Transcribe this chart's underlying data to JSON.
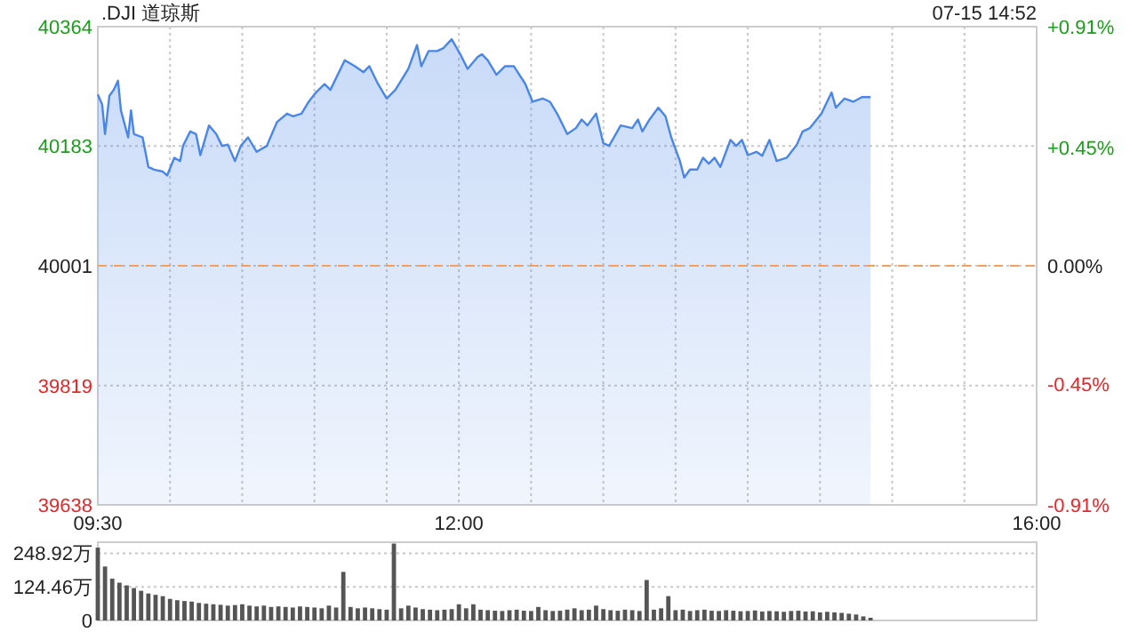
{
  "chart_data": [
    {
      "type": "area",
      "title": ".DJI 道琼斯",
      "annotations": [
        "07-15 14:52"
      ],
      "color": "#4a86e8",
      "x": [
        9.5,
        9.53,
        9.55,
        9.58,
        9.61,
        9.64,
        9.66,
        9.71,
        9.73,
        9.75,
        9.81,
        9.85,
        9.89,
        9.95,
        9.98,
        10.03,
        10.07,
        10.09,
        10.14,
        10.18,
        10.21,
        10.27,
        10.32,
        10.36,
        10.4,
        10.45,
        10.49,
        10.54,
        10.6,
        10.67,
        10.74,
        10.81,
        10.85,
        10.91,
        10.96,
        11.01,
        11.07,
        11.11,
        11.21,
        11.28,
        11.34,
        11.38,
        11.44,
        11.5,
        11.56,
        11.65,
        11.71,
        11.74,
        11.79,
        11.85,
        11.89,
        11.95,
        12.01,
        12.06,
        12.13,
        12.16,
        12.2,
        12.26,
        12.32,
        12.38,
        12.46,
        12.51,
        12.58,
        12.63,
        12.68,
        12.75,
        12.81,
        12.85,
        12.89,
        12.95,
        13.0,
        13.04,
        13.12,
        13.2,
        13.24,
        13.27,
        13.32,
        13.38,
        13.43,
        13.47,
        13.53,
        13.56,
        13.6,
        13.65,
        13.69,
        13.73,
        13.77,
        13.81,
        13.88,
        13.92,
        13.96,
        14.0,
        14.06,
        14.1,
        14.15,
        14.2,
        14.27,
        14.34,
        14.38,
        14.43,
        14.51,
        14.58,
        14.61,
        14.67,
        14.73,
        14.79,
        14.85
      ],
      "values": [
        40261,
        40246,
        40201,
        40259,
        40268,
        40282,
        40237,
        40196,
        40237,
        40201,
        40196,
        40151,
        40147,
        40144,
        40138,
        40165,
        40160,
        40183,
        40205,
        40201,
        40169,
        40214,
        40201,
        40183,
        40185,
        40160,
        40183,
        40196,
        40174,
        40183,
        40219,
        40232,
        40228,
        40232,
        40250,
        40264,
        40277,
        40268,
        40313,
        40304,
        40295,
        40304,
        40277,
        40255,
        40268,
        40300,
        40336,
        40304,
        40327,
        40327,
        40331,
        40345,
        40322,
        40300,
        40318,
        40322,
        40313,
        40291,
        40304,
        40304,
        40277,
        40250,
        40255,
        40250,
        40232,
        40201,
        40210,
        40223,
        40214,
        40232,
        40187,
        40183,
        40214,
        40210,
        40223,
        40205,
        40223,
        40241,
        40228,
        40196,
        40160,
        40135,
        40147,
        40147,
        40165,
        40156,
        40165,
        40151,
        40192,
        40183,
        40192,
        40169,
        40174,
        40168,
        40192,
        40160,
        40165,
        40185,
        40205,
        40210,
        40232,
        40264,
        40241,
        40255,
        40250,
        40257,
        40257
      ],
      "xlim": [
        9.5,
        16
      ],
      "xticks": [
        {
          "value": 9.5,
          "label": "09:30"
        },
        {
          "value": 10,
          "label": null
        },
        {
          "value": 10.5,
          "label": null
        },
        {
          "value": 11,
          "label": null
        },
        {
          "value": 11.5,
          "label": null
        },
        {
          "value": 12,
          "label": "12:00"
        },
        {
          "value": 12.5,
          "label": null
        },
        {
          "value": 13,
          "label": null
        },
        {
          "value": 13.5,
          "label": null
        },
        {
          "value": 14,
          "label": null
        },
        {
          "value": 14.5,
          "label": null
        },
        {
          "value": 15,
          "label": null
        },
        {
          "value": 15.5,
          "label": null
        },
        {
          "value": 16,
          "label": "16:00"
        }
      ],
      "ylim": [
        39638,
        40364
      ],
      "yticks": [
        39638,
        39819,
        40001,
        40183,
        40364
      ],
      "y2lim": [
        -0.91,
        0.91
      ],
      "y2ticks": [
        {
          "value": -0.91,
          "label": "-0.91%"
        },
        {
          "value": -0.45,
          "label": "-0.45%"
        },
        {
          "value": 0,
          "label": "0.00%"
        },
        {
          "value": 0.45,
          "label": "+0.45%"
        },
        {
          "value": 0.91,
          "label": "+0.91%"
        }
      ],
      "grid": true,
      "ref_lines": [
        {
          "axis": "y",
          "value": 40001,
          "color": "#f0a060",
          "line_style": "dashed"
        }
      ]
    },
    {
      "type": "bar",
      "color": "#555555",
      "tick_labels": "y",
      "grid": "y",
      "xlim": [
        9.5,
        16
      ],
      "ylim": [
        0,
        290
      ],
      "yticks": [
        0,
        {
          "value": 124.46,
          "label": "124.46万"
        },
        {
          "value": 248.92,
          "label": "248.92万"
        }
      ],
      "x": [
        9.5,
        9.55,
        9.6,
        9.65,
        9.7,
        9.75,
        9.8,
        9.85,
        9.9,
        9.95,
        10.0,
        10.05,
        10.1,
        10.15,
        10.2,
        10.25,
        10.3,
        10.35,
        10.4,
        10.45,
        10.5,
        10.55,
        10.6,
        10.65,
        10.7,
        10.75,
        10.8,
        10.85,
        10.9,
        10.95,
        11.0,
        11.05,
        11.1,
        11.15,
        11.2,
        11.25,
        11.3,
        11.35,
        11.4,
        11.45,
        11.5,
        11.55,
        11.6,
        11.65,
        11.7,
        11.75,
        11.8,
        11.85,
        11.9,
        11.95,
        12.0,
        12.05,
        12.1,
        12.15,
        12.2,
        12.25,
        12.3,
        12.35,
        12.4,
        12.45,
        12.5,
        12.55,
        12.6,
        12.65,
        12.7,
        12.75,
        12.8,
        12.85,
        12.9,
        12.95,
        13.0,
        13.05,
        13.1,
        13.15,
        13.2,
        13.25,
        13.3,
        13.35,
        13.4,
        13.45,
        13.5,
        13.55,
        13.6,
        13.65,
        13.7,
        13.75,
        13.8,
        13.85,
        13.9,
        13.95,
        14.0,
        14.05,
        14.1,
        14.15,
        14.2,
        14.25,
        14.3,
        14.35,
        14.4,
        14.45,
        14.5,
        14.55,
        14.6,
        14.65,
        14.7,
        14.75,
        14.8,
        14.85
      ],
      "values": [
        270,
        200,
        155,
        140,
        130,
        120,
        110,
        100,
        95,
        90,
        80,
        75,
        72,
        70,
        65,
        62,
        60,
        58,
        55,
        57,
        60,
        55,
        52,
        55,
        50,
        52,
        50,
        48,
        52,
        50,
        48,
        45,
        55,
        48,
        180,
        50,
        45,
        48,
        45,
        42,
        40,
        285,
        45,
        55,
        48,
        42,
        40,
        38,
        40,
        42,
        60,
        45,
        60,
        40,
        38,
        36,
        35,
        38,
        40,
        36,
        35,
        50,
        38,
        35,
        36,
        40,
        45,
        38,
        40,
        55,
        42,
        38,
        36,
        40,
        38,
        35,
        150,
        40,
        45,
        90,
        38,
        40,
        35,
        38,
        40,
        36,
        35,
        38,
        36,
        34,
        35,
        37,
        33,
        35,
        34,
        32,
        35,
        36,
        33,
        34,
        30,
        32,
        30,
        28,
        25,
        22,
        15,
        10
      ]
    }
  ]
}
